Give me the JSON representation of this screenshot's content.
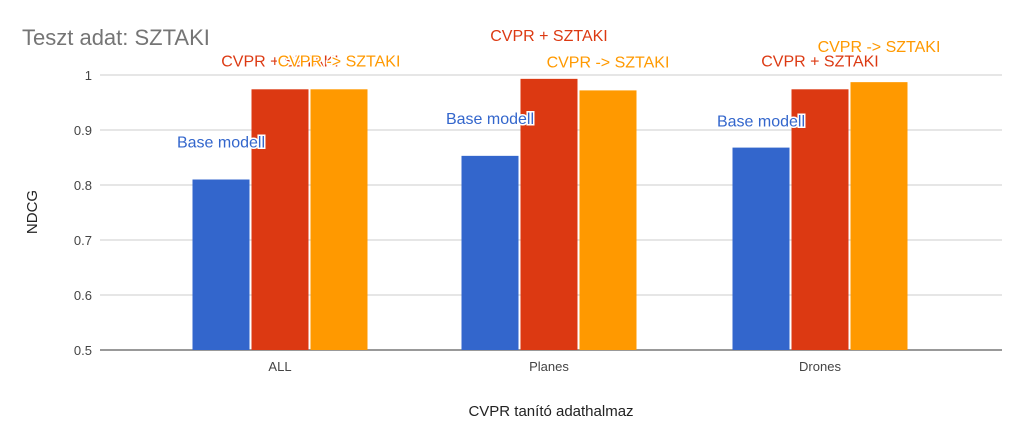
{
  "chart_data": {
    "type": "bar",
    "title": "Teszt adat: SZTAKI",
    "xlabel": "CVPR tanító adathalmaz",
    "ylabel": "NDCG",
    "categories": [
      "ALL",
      "Planes",
      "Drones"
    ],
    "ylim": [
      0.5,
      1.0
    ],
    "yticks": [
      "0.5",
      "0.6",
      "0.7",
      "0.8",
      "0.9",
      "1"
    ],
    "grid": true,
    "legend": "none",
    "series": [
      {
        "name": "Base modell",
        "color": "#3366cc",
        "values": [
          0.81,
          0.853,
          0.868
        ]
      },
      {
        "name": "CVPR + SZTAKI",
        "color": "#dc3912",
        "values": [
          0.974,
          0.993,
          0.974
        ]
      },
      {
        "name": "CVPR -> SZTAKI",
        "color": "#ff9900",
        "values": [
          0.974,
          0.972,
          0.987
        ]
      }
    ]
  }
}
